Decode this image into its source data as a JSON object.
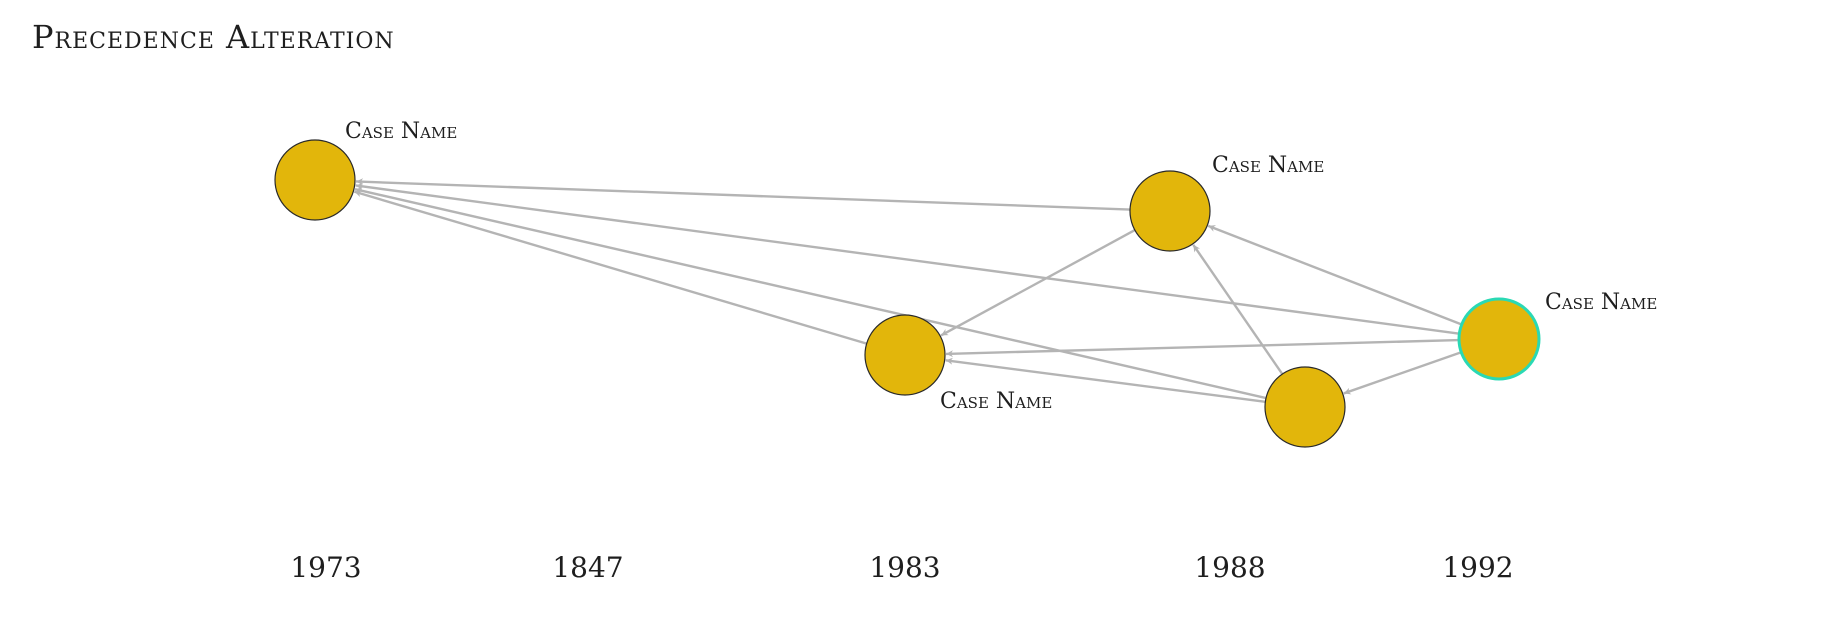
{
  "title": "Precedence Alteration",
  "colors": {
    "node_fill": "#e2b60b",
    "node_stroke": "#2a2a2a",
    "selected_stroke": "#2ad9b4",
    "edge": "#b4b4b4"
  },
  "axis": {
    "labels": [
      "1973",
      "1847",
      "1983",
      "1988",
      "1992"
    ]
  },
  "nodes": [
    {
      "id": "n1",
      "label": "Case Name",
      "selected": false
    },
    {
      "id": "n2",
      "label": "Case Name",
      "selected": false
    },
    {
      "id": "n3",
      "label": "Case Name",
      "selected": false
    },
    {
      "id": "n4",
      "label": "Case Name",
      "selected": true
    },
    {
      "id": "n5",
      "label": "",
      "selected": false
    }
  ],
  "edges": [
    {
      "from": "n2",
      "to": "n1"
    },
    {
      "from": "n4",
      "to": "n1"
    },
    {
      "from": "n3",
      "to": "n1"
    },
    {
      "from": "n5",
      "to": "n1"
    },
    {
      "from": "n2",
      "to": "n3"
    },
    {
      "from": "n4",
      "to": "n2"
    },
    {
      "from": "n4",
      "to": "n3"
    },
    {
      "from": "n5",
      "to": "n3"
    },
    {
      "from": "n5",
      "to": "n2"
    },
    {
      "from": "n4",
      "to": "n5"
    }
  ]
}
